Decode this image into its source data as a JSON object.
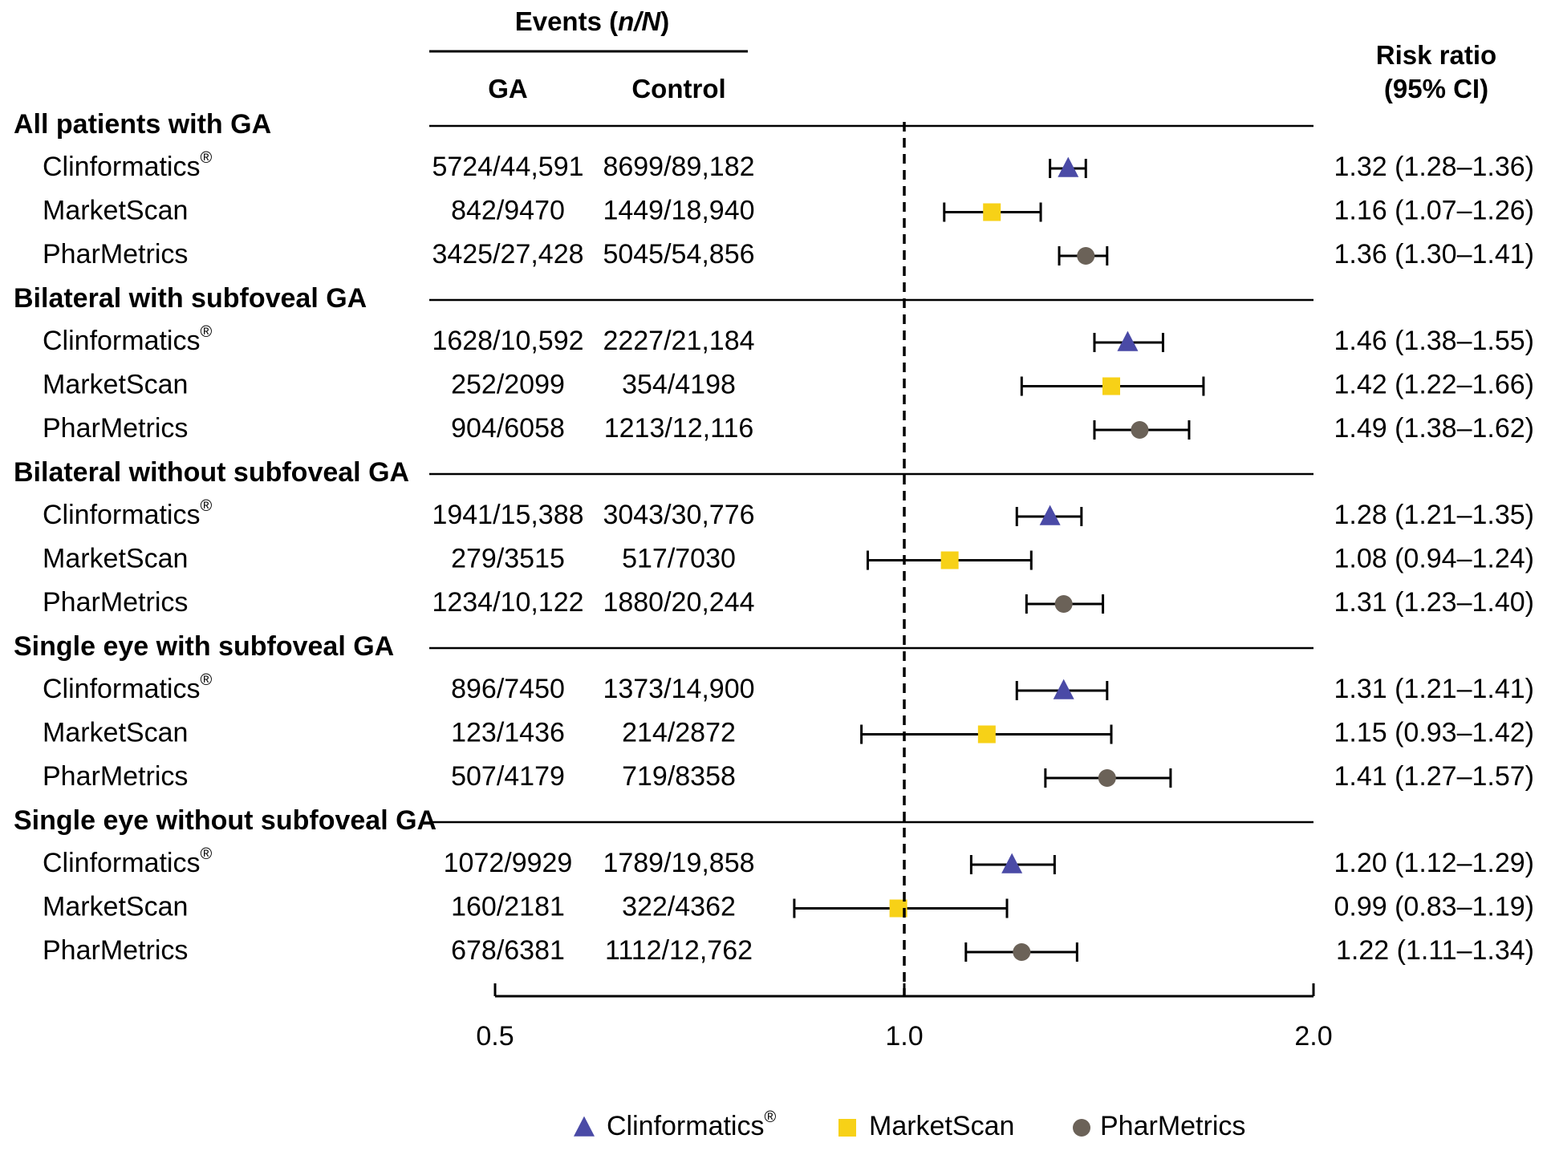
{
  "headers": {
    "events": "Events (",
    "events_italic": "n/N",
    "events_close": ")",
    "ga": "GA",
    "control": "Control",
    "rr_line1": "Risk ratio",
    "rr_line2": "(95% CI)"
  },
  "chart_data": {
    "type": "forest",
    "xscale": "log",
    "xlim": [
      0.5,
      2.0
    ],
    "xticks": [
      "0.5",
      "1.0",
      "2.0"
    ],
    "reference_line": 1.0,
    "groups": [
      {
        "title": "All patients with GA",
        "rows": [
          {
            "source": "Clinformatics",
            "source_sup": "®",
            "ga": "5724/44,591",
            "control": "8699/89,182",
            "rr_text": "1.32 (1.28–1.36)",
            "rr": 1.32,
            "lo": 1.28,
            "hi": 1.36,
            "marker": "triangle"
          },
          {
            "source": "MarketScan",
            "source_sup": "",
            "ga": "842/9470",
            "control": "1449/18,940",
            "rr_text": "1.16 (1.07–1.26)",
            "rr": 1.16,
            "lo": 1.07,
            "hi": 1.26,
            "marker": "square"
          },
          {
            "source": "PharMetrics",
            "source_sup": "",
            "ga": "3425/27,428",
            "control": "5045/54,856",
            "rr_text": "1.36 (1.30–1.41)",
            "rr": 1.36,
            "lo": 1.3,
            "hi": 1.41,
            "marker": "circle"
          }
        ]
      },
      {
        "title": "Bilateral with subfoveal GA",
        "rows": [
          {
            "source": "Clinformatics",
            "source_sup": "®",
            "ga": "1628/10,592",
            "control": "2227/21,184",
            "rr_text": "1.46 (1.38–1.55)",
            "rr": 1.46,
            "lo": 1.38,
            "hi": 1.55,
            "marker": "triangle"
          },
          {
            "source": "MarketScan",
            "source_sup": "",
            "ga": "252/2099",
            "control": "354/4198",
            "rr_text": "1.42 (1.22–1.66)",
            "rr": 1.42,
            "lo": 1.22,
            "hi": 1.66,
            "marker": "square"
          },
          {
            "source": "PharMetrics",
            "source_sup": "",
            "ga": "904/6058",
            "control": "1213/12,116",
            "rr_text": "1.49 (1.38–1.62)",
            "rr": 1.49,
            "lo": 1.38,
            "hi": 1.62,
            "marker": "circle"
          }
        ]
      },
      {
        "title": "Bilateral without subfoveal GA",
        "rows": [
          {
            "source": "Clinformatics",
            "source_sup": "®",
            "ga": "1941/15,388",
            "control": "3043/30,776",
            "rr_text": "1.28 (1.21–1.35)",
            "rr": 1.28,
            "lo": 1.21,
            "hi": 1.35,
            "marker": "triangle"
          },
          {
            "source": "MarketScan",
            "source_sup": "",
            "ga": "279/3515",
            "control": "517/7030",
            "rr_text": "1.08 (0.94–1.24)",
            "rr": 1.08,
            "lo": 0.94,
            "hi": 1.24,
            "marker": "square"
          },
          {
            "source": "PharMetrics",
            "source_sup": "",
            "ga": "1234/10,122",
            "control": "1880/20,244",
            "rr_text": "1.31 (1.23–1.40)",
            "rr": 1.31,
            "lo": 1.23,
            "hi": 1.4,
            "marker": "circle"
          }
        ]
      },
      {
        "title": "Single eye with subfoveal GA",
        "rows": [
          {
            "source": "Clinformatics",
            "source_sup": "®",
            "ga": "896/7450",
            "control": "1373/14,900",
            "rr_text": "1.31 (1.21–1.41)",
            "rr": 1.31,
            "lo": 1.21,
            "hi": 1.41,
            "marker": "triangle"
          },
          {
            "source": "MarketScan",
            "source_sup": "",
            "ga": "123/1436",
            "control": "214/2872",
            "rr_text": "1.15 (0.93–1.42)",
            "rr": 1.15,
            "lo": 0.93,
            "hi": 1.42,
            "marker": "square"
          },
          {
            "source": "PharMetrics",
            "source_sup": "",
            "ga": "507/4179",
            "control": "719/8358",
            "rr_text": "1.41 (1.27–1.57)",
            "rr": 1.41,
            "lo": 1.27,
            "hi": 1.57,
            "marker": "circle"
          }
        ]
      },
      {
        "title": "Single eye without subfoveal GA",
        "rows": [
          {
            "source": "Clinformatics",
            "source_sup": "®",
            "ga": "1072/9929",
            "control": "1789/19,858",
            "rr_text": "1.20 (1.12–1.29)",
            "rr": 1.2,
            "lo": 1.12,
            "hi": 1.29,
            "marker": "triangle"
          },
          {
            "source": "MarketScan",
            "source_sup": "",
            "ga": "160/2181",
            "control": "322/4362",
            "rr_text": "0.99 (0.83–1.19)",
            "rr": 0.99,
            "lo": 0.83,
            "hi": 1.19,
            "marker": "square"
          },
          {
            "source": "PharMetrics",
            "source_sup": "",
            "ga": "678/6381",
            "control": "1112/12,762",
            "rr_text": "1.22 (1.11–1.34)",
            "rr": 1.22,
            "lo": 1.11,
            "hi": 1.34,
            "marker": "circle"
          }
        ]
      }
    ],
    "legend": [
      {
        "label": "Clinformatics",
        "sup": "®",
        "marker": "triangle"
      },
      {
        "label": "MarketScan",
        "sup": "",
        "marker": "square"
      },
      {
        "label": "PharMetrics",
        "sup": "",
        "marker": "circle"
      }
    ],
    "colors": {
      "triangle": "#4a4aa6",
      "square": "#f7d117",
      "circle": "#6b6258",
      "line": "#000000"
    }
  }
}
